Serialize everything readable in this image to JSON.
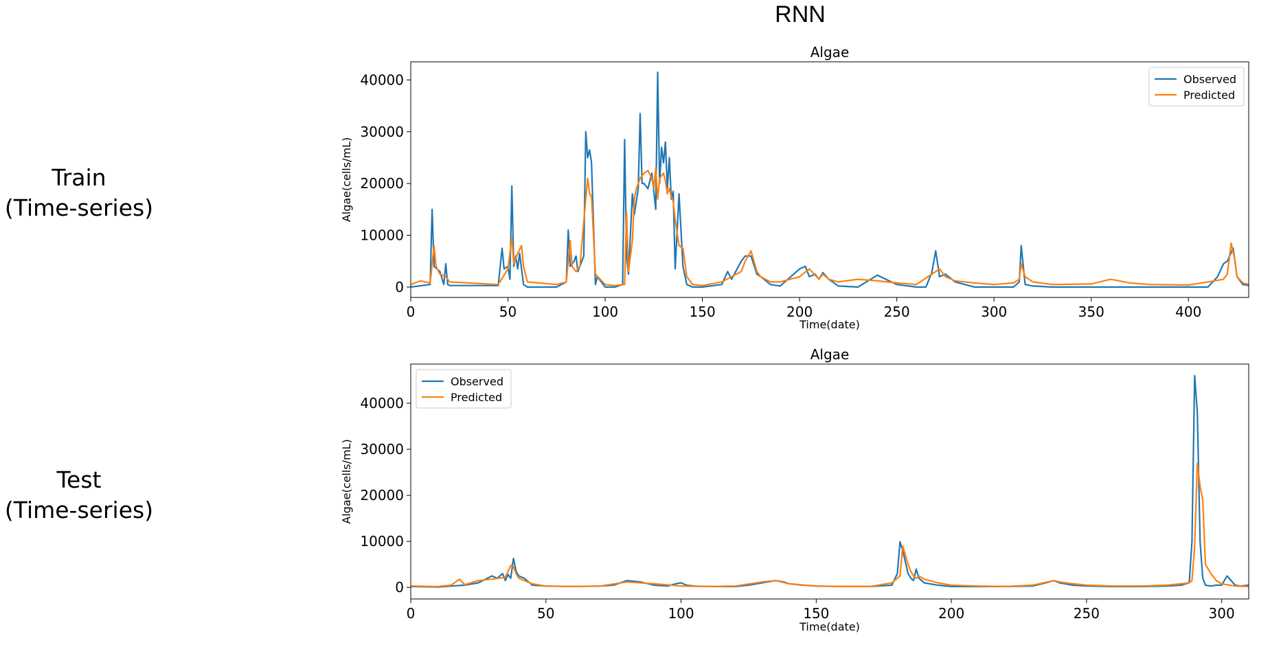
{
  "page": {
    "title": "RNN",
    "rows": [
      {
        "line1": "Train",
        "line2": "(Time-series)"
      },
      {
        "line1": "Test",
        "line2": "(Time-series)"
      }
    ]
  },
  "colors": {
    "observed": "#1f77b4",
    "predicted": "#ff7f0e"
  },
  "chart_data": [
    {
      "type": "line",
      "title": "Algae",
      "xlabel": "Time(date)",
      "ylabel": "Algae(cells/mL)",
      "xlim": [
        0,
        431
      ],
      "ylim": [
        -2000,
        43500
      ],
      "xticks": [
        0,
        50,
        100,
        150,
        200,
        250,
        300,
        350,
        400
      ],
      "yticks": [
        0,
        10000,
        20000,
        30000,
        40000
      ],
      "legend_position": "upper-right",
      "series": [
        {
          "name": "Observed",
          "color": "#1f77b4",
          "x": [
            0,
            10,
            11,
            12,
            15,
            17,
            18,
            19,
            20,
            45,
            47,
            48,
            50,
            51,
            52,
            53,
            54,
            55,
            56,
            58,
            60,
            75,
            80,
            81,
            82,
            84,
            85,
            86,
            88,
            89,
            90,
            91,
            92,
            93,
            95,
            96,
            100,
            105,
            109,
            110,
            111,
            112,
            114,
            115,
            117,
            118,
            119,
            120,
            122,
            124,
            126,
            127,
            128,
            129,
            130,
            131,
            132,
            133,
            134,
            135,
            136,
            138,
            140,
            142,
            145,
            150,
            160,
            163,
            165,
            170,
            172,
            175,
            178,
            180,
            185,
            190,
            200,
            203,
            205,
            208,
            210,
            212,
            215,
            220,
            230,
            240,
            250,
            260,
            265,
            268,
            270,
            272,
            275,
            280,
            290,
            300,
            310,
            313,
            314,
            316,
            320,
            330,
            350,
            360,
            370,
            380,
            400,
            410,
            415,
            418,
            420,
            423,
            425,
            428,
            431
          ],
          "y": [
            0,
            500,
            15000,
            4000,
            3000,
            500,
            4500,
            500,
            300,
            300,
            7500,
            3500,
            4000,
            1500,
            19500,
            4000,
            6000,
            3500,
            6500,
            500,
            0,
            0,
            1000,
            11000,
            4000,
            5000,
            6000,
            3000,
            5000,
            6000,
            30000,
            25000,
            26500,
            24000,
            500,
            2000,
            0,
            0,
            500,
            28500,
            6000,
            2500,
            18000,
            14000,
            19000,
            33500,
            20000,
            20000,
            19000,
            22000,
            15000,
            41500,
            20000,
            27000,
            24000,
            28000,
            19000,
            25000,
            17000,
            18500,
            3500,
            18000,
            4000,
            500,
            0,
            0,
            500,
            3000,
            1500,
            5000,
            6000,
            6000,
            2500,
            2000,
            500,
            200,
            3500,
            4000,
            2000,
            2500,
            1500,
            2800,
            1500,
            200,
            0,
            2300,
            500,
            0,
            0,
            2800,
            7000,
            2000,
            2500,
            1000,
            0,
            0,
            0,
            1000,
            8000,
            500,
            200,
            0,
            0,
            0,
            0,
            0,
            0,
            0,
            2000,
            4500,
            5000,
            7500,
            2000,
            500,
            300
          ]
        },
        {
          "name": "Predicted",
          "color": "#ff7f0e",
          "x": [
            0,
            5,
            10,
            12,
            13,
            15,
            18,
            20,
            45,
            50,
            52,
            53,
            55,
            57,
            58,
            60,
            75,
            80,
            82,
            83,
            85,
            87,
            90,
            91,
            92,
            93,
            95,
            100,
            105,
            110,
            111,
            112,
            114,
            115,
            116,
            117,
            118,
            120,
            122,
            124,
            125,
            126,
            127,
            128,
            129,
            130,
            131,
            132,
            133,
            134,
            135,
            136,
            138,
            140,
            142,
            145,
            150,
            160,
            165,
            170,
            172,
            175,
            178,
            180,
            185,
            190,
            200,
            205,
            210,
            212,
            215,
            220,
            230,
            240,
            250,
            260,
            270,
            272,
            275,
            280,
            290,
            300,
            310,
            313,
            314,
            316,
            320,
            330,
            350,
            360,
            370,
            380,
            400,
            410,
            418,
            420,
            422,
            424,
            425,
            428,
            431
          ],
          "y": [
            500,
            1200,
            800,
            8000,
            4000,
            2500,
            2000,
            1000,
            500,
            3500,
            9500,
            4500,
            6500,
            8000,
            4000,
            1000,
            500,
            1000,
            9000,
            4000,
            3000,
            4000,
            17000,
            21000,
            18000,
            17500,
            2500,
            500,
            300,
            500,
            14500,
            3000,
            9000,
            17000,
            19000,
            20000,
            21000,
            22000,
            22500,
            21000,
            19000,
            23000,
            17000,
            21000,
            21500,
            22000,
            20500,
            18000,
            19000,
            17500,
            16500,
            13000,
            8000,
            7500,
            2000,
            500,
            300,
            1000,
            2000,
            3000,
            5000,
            7000,
            3000,
            2000,
            1000,
            1000,
            2000,
            3500,
            1500,
            2500,
            1500,
            1000,
            1500,
            1200,
            800,
            500,
            3000,
            3500,
            2000,
            1200,
            800,
            500,
            800,
            1500,
            4500,
            2000,
            1000,
            500,
            600,
            1500,
            800,
            500,
            400,
            1000,
            1500,
            2500,
            8500,
            5000,
            2000,
            800,
            500
          ]
        }
      ]
    },
    {
      "type": "line",
      "title": "Algae",
      "xlabel": "Time(date)",
      "ylabel": "Algae(cells/mL)",
      "xlim": [
        0,
        310
      ],
      "ylim": [
        -2500,
        48500
      ],
      "xticks": [
        0,
        50,
        100,
        150,
        200,
        250,
        300
      ],
      "yticks": [
        0,
        10000,
        20000,
        30000,
        40000
      ],
      "legend_position": "upper-left",
      "series": [
        {
          "name": "Observed",
          "color": "#1f77b4",
          "x": [
            0,
            10,
            15,
            20,
            25,
            30,
            32,
            34,
            35,
            36,
            37,
            38,
            39,
            40,
            42,
            45,
            50,
            60,
            70,
            75,
            80,
            85,
            90,
            95,
            98,
            100,
            102,
            105,
            110,
            120,
            125,
            130,
            135,
            138,
            140,
            145,
            150,
            160,
            170,
            178,
            180,
            181,
            182,
            183,
            184,
            185,
            186,
            187,
            188,
            190,
            195,
            200,
            210,
            220,
            230,
            235,
            238,
            240,
            245,
            250,
            260,
            270,
            280,
            285,
            288,
            289,
            290,
            291,
            292,
            293,
            294,
            296,
            298,
            300,
            302,
            305,
            307,
            310
          ],
          "y": [
            200,
            100,
            300,
            500,
            1000,
            2500,
            2000,
            3000,
            1500,
            2800,
            2000,
            6300,
            3500,
            2500,
            2000,
            500,
            300,
            200,
            300,
            500,
            1500,
            1200,
            500,
            300,
            800,
            1000,
            500,
            300,
            200,
            200,
            500,
            1000,
            1500,
            1200,
            800,
            500,
            300,
            200,
            200,
            500,
            3000,
            9900,
            8000,
            5500,
            3000,
            2000,
            1500,
            4000,
            2000,
            1000,
            500,
            200,
            200,
            200,
            300,
            1000,
            1500,
            1000,
            500,
            300,
            200,
            200,
            300,
            500,
            1000,
            10000,
            46000,
            38000,
            10000,
            2000,
            500,
            300,
            500,
            500,
            2500,
            500,
            300,
            500
          ]
        },
        {
          "name": "Predicted",
          "color": "#ff7f0e",
          "x": [
            0,
            10,
            15,
            18,
            20,
            25,
            30,
            35,
            37,
            38,
            39,
            40,
            42,
            45,
            50,
            60,
            70,
            80,
            90,
            100,
            110,
            120,
            130,
            135,
            140,
            150,
            160,
            170,
            178,
            180,
            181,
            182,
            183,
            184,
            185,
            186,
            187,
            188,
            190,
            195,
            200,
            210,
            220,
            230,
            238,
            240,
            245,
            250,
            260,
            270,
            280,
            285,
            288,
            289,
            290,
            291,
            292,
            293,
            294,
            296,
            298,
            300,
            305,
            310
          ],
          "y": [
            300,
            200,
            500,
            1800,
            600,
            1500,
            1800,
            2200,
            4800,
            4500,
            3000,
            2000,
            1500,
            800,
            300,
            200,
            300,
            1200,
            800,
            300,
            200,
            300,
            1200,
            1500,
            800,
            300,
            200,
            200,
            1000,
            2000,
            2500,
            9000,
            7000,
            5000,
            3500,
            2500,
            2000,
            2500,
            1800,
            1000,
            500,
            300,
            200,
            500,
            1500,
            1200,
            800,
            500,
            300,
            300,
            500,
            800,
            1000,
            1500,
            9000,
            27000,
            22000,
            19000,
            5000,
            3000,
            1500,
            800,
            300,
            200
          ]
        }
      ]
    }
  ]
}
